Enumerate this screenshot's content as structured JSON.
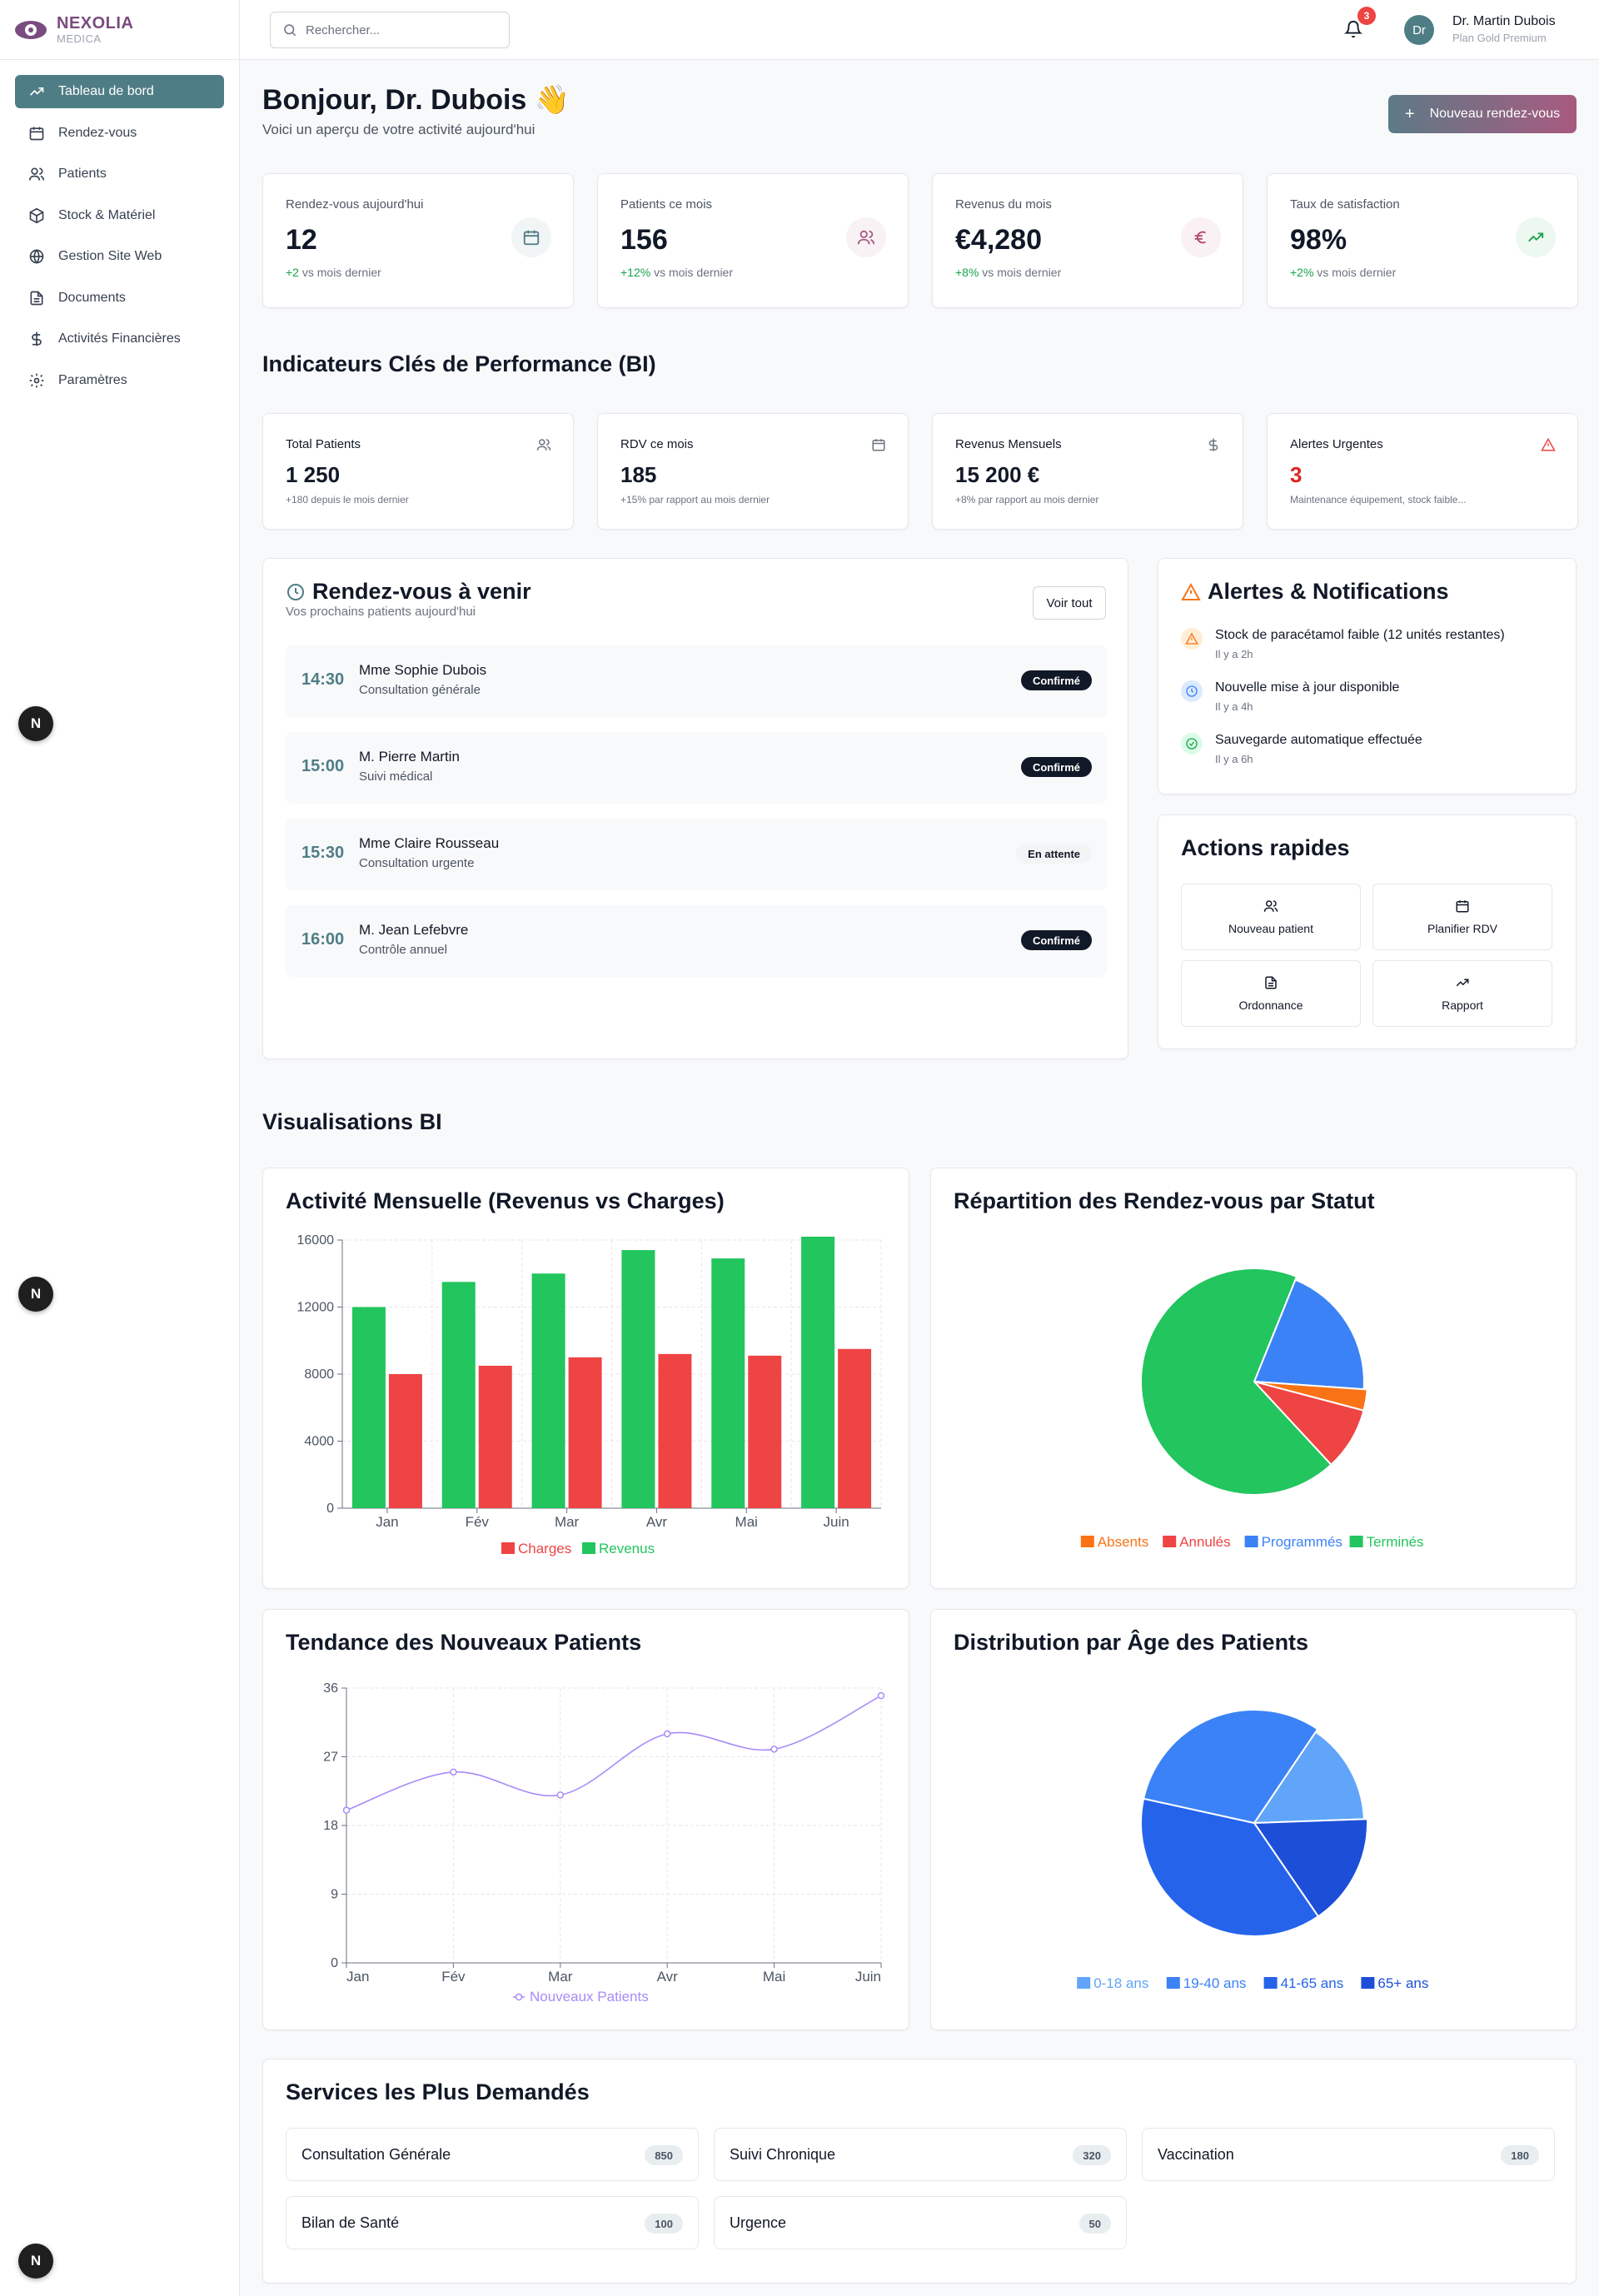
{
  "brand": {
    "name": "NEXOLIA",
    "sub": "MEDICA"
  },
  "sidebar": {
    "items": [
      {
        "label": "Tableau de bord",
        "icon": "trending-up-icon",
        "active": true
      },
      {
        "label": "Rendez-vous",
        "icon": "calendar-icon"
      },
      {
        "label": "Patients",
        "icon": "users-icon"
      },
      {
        "label": "Stock & Matériel",
        "icon": "package-icon"
      },
      {
        "label": "Gestion Site Web",
        "icon": "globe-icon"
      },
      {
        "label": "Documents",
        "icon": "file-icon"
      },
      {
        "label": "Activités Financières",
        "icon": "dollar-icon"
      },
      {
        "label": "Paramètres",
        "icon": "gear-icon"
      }
    ]
  },
  "floating_badge": "N",
  "header": {
    "search_placeholder": "Rechercher...",
    "notif_count": "3",
    "avatar": "Dr",
    "user_name": "Dr. Martin Dubois",
    "user_plan": "Plan Gold Premium"
  },
  "greeting": {
    "title": "Bonjour, Dr. Dubois 👋",
    "subtitle": "Voici un aperçu de votre activité aujourd'hui",
    "new_button": "Nouveau rendez-vous"
  },
  "stats": [
    {
      "label": "Rendez-vous aujourd'hui",
      "value": "12",
      "change": "+2",
      "change_text": " vs mois dernier",
      "icon": "calendar-icon",
      "color": "#4f7d85"
    },
    {
      "label": "Patients ce mois",
      "value": "156",
      "change": "+12%",
      "change_text": " vs mois dernier",
      "icon": "users-icon",
      "color": "#a85a80"
    },
    {
      "label": "Revenus du mois",
      "value": "€4,280",
      "change": "+8%",
      "change_text": " vs mois dernier",
      "icon": "euro-icon",
      "color": "#b04a6a"
    },
    {
      "label": "Taux de satisfaction",
      "value": "98%",
      "change": "+2%",
      "change_text": " vs mois dernier",
      "icon": "trending-up-icon",
      "color": "#16a34a"
    }
  ],
  "kpi_title": "Indicateurs Clés de Performance (BI)",
  "kpis": [
    {
      "label": "Total Patients",
      "value": "1 250",
      "sub": "+180 depuis le mois dernier",
      "icon": "users-icon"
    },
    {
      "label": "RDV ce mois",
      "value": "185",
      "sub": "+15% par rapport au mois dernier",
      "icon": "calendar-icon"
    },
    {
      "label": "Revenus Mensuels",
      "value": "15 200 €",
      "sub": "+8% par rapport au mois dernier",
      "icon": "dollar-icon"
    },
    {
      "label": "Alertes Urgentes",
      "value": "3",
      "sub": "Maintenance équipement, stock faible...",
      "icon": "alert-triangle-icon",
      "alert": true
    }
  ],
  "appointments": {
    "title": "Rendez-vous à venir",
    "subtitle": "Vos prochains patients aujourd'hui",
    "button": "Voir tout",
    "items": [
      {
        "time": "14:30",
        "name": "Mme Sophie Dubois",
        "type": "Consultation générale",
        "status": "Confirmé",
        "style": "dark"
      },
      {
        "time": "15:00",
        "name": "M. Pierre Martin",
        "type": "Suivi médical",
        "status": "Confirmé",
        "style": "dark"
      },
      {
        "time": "15:30",
        "name": "Mme Claire Rousseau",
        "type": "Consultation urgente",
        "status": "En attente",
        "style": "light"
      },
      {
        "time": "16:00",
        "name": "M. Jean Lefebvre",
        "type": "Contrôle annuel",
        "status": "Confirmé",
        "style": "dark"
      }
    ]
  },
  "alerts": {
    "title": "Alertes & Notifications",
    "items": [
      {
        "text": "Stock de paracétamol faible (12 unités restantes)",
        "time": "Il y a 2h",
        "icon": "alert-triangle-icon",
        "color": "#f97316",
        "bg": "#ffedd5"
      },
      {
        "text": "Nouvelle mise à jour disponible",
        "time": "Il y a 4h",
        "icon": "clock-icon",
        "color": "#3b82f6",
        "bg": "#dbeafe"
      },
      {
        "text": "Sauvegarde automatique effectuée",
        "time": "Il y a 6h",
        "icon": "check-circle-icon",
        "color": "#16a34a",
        "bg": "#dcfce7"
      }
    ]
  },
  "quick_actions": {
    "title": "Actions rapides",
    "items": [
      {
        "label": "Nouveau patient",
        "icon": "users-icon"
      },
      {
        "label": "Planifier RDV",
        "icon": "calendar-icon"
      },
      {
        "label": "Ordonnance",
        "icon": "file-icon"
      },
      {
        "label": "Rapport",
        "icon": "trending-up-icon"
      }
    ]
  },
  "viz_title": "Visualisations BI",
  "chart_data": [
    {
      "type": "bar",
      "title": "Activité Mensuelle (Revenus vs Charges)",
      "categories": [
        "Jan",
        "Fév",
        "Mar",
        "Avr",
        "Mai",
        "Juin"
      ],
      "series": [
        {
          "name": "Revenus",
          "values": [
            12000,
            13500,
            14000,
            15400,
            14900,
            16200
          ],
          "color": "#22c55e"
        },
        {
          "name": "Charges",
          "values": [
            8000,
            8500,
            9000,
            9200,
            9100,
            9500
          ],
          "color": "#ef4444"
        }
      ],
      "ylim": [
        0,
        16000
      ],
      "yticks": [
        "0",
        "4000",
        "8000",
        "12000",
        "16000"
      ],
      "legend": "bottom"
    },
    {
      "type": "pie",
      "title": "Répartition des Rendez-vous par Statut",
      "slices": [
        {
          "name": "Programmés",
          "value": 20,
          "color": "#3b82f6"
        },
        {
          "name": "Absents",
          "value": 3,
          "color": "#f97316"
        },
        {
          "name": "Annulés",
          "value": 9,
          "color": "#ef4444"
        },
        {
          "name": "Terminés",
          "value": 68,
          "color": "#22c55e"
        }
      ],
      "legend_order": [
        "Absents",
        "Annulés",
        "Programmés",
        "Terminés"
      ],
      "legend": "bottom"
    },
    {
      "type": "line",
      "title": "Tendance des Nouveaux Patients",
      "categories": [
        "Jan",
        "Fév",
        "Mar",
        "Avr",
        "Mai",
        "Juin"
      ],
      "series": [
        {
          "name": "Nouveaux Patients",
          "values": [
            20,
            25,
            22,
            30,
            28,
            35
          ],
          "color": "#a78bfa"
        }
      ],
      "ylim": [
        0,
        36
      ],
      "yticks": [
        "0",
        "9",
        "18",
        "27",
        "36"
      ],
      "legend": "bottom"
    },
    {
      "type": "pie",
      "title": "Distribution par Âge des Patients",
      "slices": [
        {
          "name": "0-18 ans",
          "value": 15,
          "color": "#60a5fa"
        },
        {
          "name": "65+ ans",
          "value": 16,
          "color": "#1d4ed8"
        },
        {
          "name": "41-65 ans",
          "value": 38,
          "color": "#2563eb"
        },
        {
          "name": "19-40 ans",
          "value": 31,
          "color": "#3b82f6"
        }
      ],
      "legend_order": [
        "0-18 ans",
        "19-40 ans",
        "41-65 ans",
        "65+ ans"
      ],
      "legend": "bottom"
    }
  ],
  "services": {
    "title": "Services les Plus Demandés",
    "items": [
      {
        "name": "Consultation Générale",
        "count": "850"
      },
      {
        "name": "Suivi Chronique",
        "count": "320"
      },
      {
        "name": "Vaccination",
        "count": "180"
      },
      {
        "name": "Bilan de Santé",
        "count": "100"
      },
      {
        "name": "Urgence",
        "count": "50"
      }
    ]
  }
}
